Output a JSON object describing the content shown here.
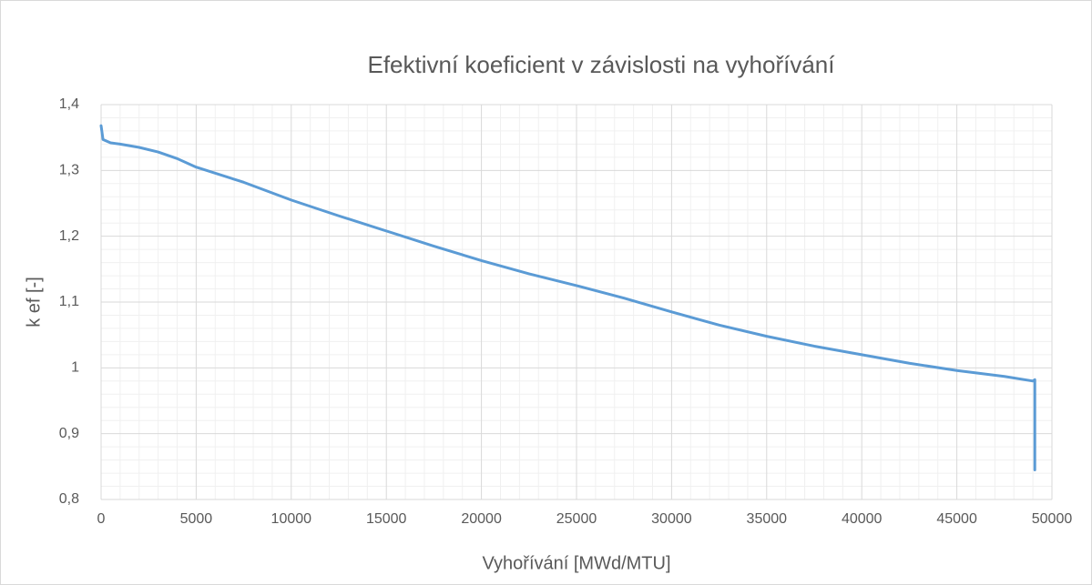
{
  "chart_data": {
    "type": "line",
    "title": "Efektivní koeficient v závislosti na vyhořívání",
    "x_label": "Vyhořívání [MWd/MTU]",
    "y_label": "k ef [-]",
    "x": [
      0,
      100,
      500,
      1000,
      2000,
      3000,
      4000,
      5000,
      7500,
      10000,
      12500,
      15000,
      17500,
      20000,
      22500,
      25000,
      27500,
      30000,
      32500,
      35000,
      37500,
      40000,
      42500,
      45000,
      47500,
      49000,
      49100,
      49100
    ],
    "values": [
      1.368,
      1.347,
      1.342,
      1.34,
      1.335,
      1.328,
      1.318,
      1.305,
      1.282,
      1.255,
      1.231,
      1.208,
      1.185,
      1.163,
      1.143,
      1.125,
      1.106,
      1.085,
      1.065,
      1.048,
      1.033,
      1.02,
      1.007,
      0.996,
      0.987,
      0.98,
      0.982,
      0.845
    ],
    "color": "#5b9bd5",
    "xlim": [
      0,
      50000
    ],
    "xticks": [
      0,
      5000,
      10000,
      15000,
      20000,
      25000,
      30000,
      35000,
      40000,
      45000,
      50000
    ],
    "ylim": [
      0.8,
      1.4
    ],
    "yticks": [
      {
        "value": 0.8,
        "label": "0,8"
      },
      {
        "value": 0.9,
        "label": "0,9"
      },
      1,
      {
        "value": 1.1,
        "label": "1,1"
      },
      {
        "value": 1.2,
        "label": "1,2"
      },
      {
        "value": 1.3,
        "label": "1,3"
      },
      {
        "value": 1.4,
        "label": "1,4"
      }
    ],
    "grid": true,
    "minor_divisions": 5
  }
}
